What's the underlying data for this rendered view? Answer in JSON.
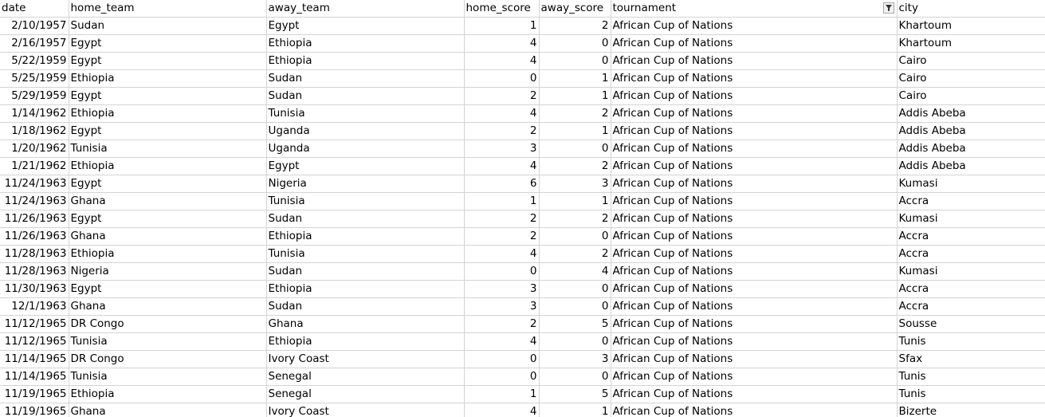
{
  "headers": {
    "date": "date",
    "home_team": "home_team",
    "away_team": "away_team",
    "home_score": "home_score",
    "away_score": "away_score",
    "tournament": "tournament",
    "city": "city"
  },
  "filter_icon": "filter-funnel-icon",
  "rows": [
    [
      "2/10/1957",
      "Sudan",
      "Egypt",
      "1",
      "2",
      "African Cup of Nations",
      "Khartoum"
    ],
    [
      "2/16/1957",
      "Egypt",
      "Ethiopia",
      "4",
      "0",
      "African Cup of Nations",
      "Khartoum"
    ],
    [
      "5/22/1959",
      "Egypt",
      "Ethiopia",
      "4",
      "0",
      "African Cup of Nations",
      "Cairo"
    ],
    [
      "5/25/1959",
      "Ethiopia",
      "Sudan",
      "0",
      "1",
      "African Cup of Nations",
      "Cairo"
    ],
    [
      "5/29/1959",
      "Egypt",
      "Sudan",
      "2",
      "1",
      "African Cup of Nations",
      "Cairo"
    ],
    [
      "1/14/1962",
      "Ethiopia",
      "Tunisia",
      "4",
      "2",
      "African Cup of Nations",
      "Addis Abeba"
    ],
    [
      "1/18/1962",
      "Egypt",
      "Uganda",
      "2",
      "1",
      "African Cup of Nations",
      "Addis Abeba"
    ],
    [
      "1/20/1962",
      "Tunisia",
      "Uganda",
      "3",
      "0",
      "African Cup of Nations",
      "Addis Abeba"
    ],
    [
      "1/21/1962",
      "Ethiopia",
      "Egypt",
      "4",
      "2",
      "African Cup of Nations",
      "Addis Abeba"
    ],
    [
      "11/24/1963",
      "Egypt",
      "Nigeria",
      "6",
      "3",
      "African Cup of Nations",
      "Kumasi"
    ],
    [
      "11/24/1963",
      "Ghana",
      "Tunisia",
      "1",
      "1",
      "African Cup of Nations",
      "Accra"
    ],
    [
      "11/26/1963",
      "Egypt",
      "Sudan",
      "2",
      "2",
      "African Cup of Nations",
      "Kumasi"
    ],
    [
      "11/26/1963",
      "Ghana",
      "Ethiopia",
      "2",
      "0",
      "African Cup of Nations",
      "Accra"
    ],
    [
      "11/28/1963",
      "Ethiopia",
      "Tunisia",
      "4",
      "2",
      "African Cup of Nations",
      "Accra"
    ],
    [
      "11/28/1963",
      "Nigeria",
      "Sudan",
      "0",
      "4",
      "African Cup of Nations",
      "Kumasi"
    ],
    [
      "11/30/1963",
      "Egypt",
      "Ethiopia",
      "3",
      "0",
      "African Cup of Nations",
      "Accra"
    ],
    [
      "12/1/1963",
      "Ghana",
      "Sudan",
      "3",
      "0",
      "African Cup of Nations",
      "Accra"
    ],
    [
      "11/12/1965",
      "DR Congo",
      "Ghana",
      "2",
      "5",
      "African Cup of Nations",
      "Sousse"
    ],
    [
      "11/12/1965",
      "Tunisia",
      "Ethiopia",
      "4",
      "0",
      "African Cup of Nations",
      "Tunis"
    ],
    [
      "11/14/1965",
      "DR Congo",
      "Ivory Coast",
      "0",
      "3",
      "African Cup of Nations",
      "Sfax"
    ],
    [
      "11/14/1965",
      "Tunisia",
      "Senegal",
      "0",
      "0",
      "African Cup of Nations",
      "Tunis"
    ],
    [
      "11/19/1965",
      "Ethiopia",
      "Senegal",
      "1",
      "5",
      "African Cup of Nations",
      "Tunis"
    ],
    [
      "11/19/1965",
      "Ghana",
      "Ivory Coast",
      "4",
      "1",
      "African Cup of Nations",
      "Bizerte"
    ]
  ]
}
